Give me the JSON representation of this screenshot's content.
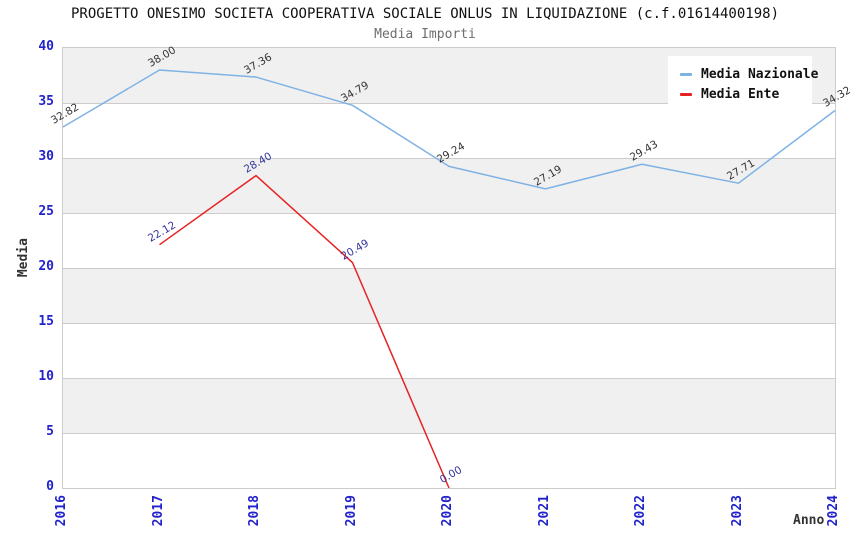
{
  "chart_data": {
    "type": "line",
    "title": "PROGETTO ONESIMO SOCIETA COOPERATIVA SOCIALE ONLUS IN LIQUIDAZIONE (c.f.01614400198)",
    "subtitle": "Media Importi",
    "xlabel": "Anno",
    "ylabel": "Media",
    "ylim": [
      0,
      40
    ],
    "yticks": [
      0,
      5,
      10,
      15,
      20,
      25,
      30,
      35,
      40
    ],
    "x": [
      2016,
      2017,
      2018,
      2019,
      2020,
      2021,
      2022,
      2023,
      2024
    ],
    "grid": "horizontal-bands-alternating",
    "legend_position": "top-right",
    "series": [
      {
        "name": "Media Nazionale",
        "color": "#7fb2e4",
        "label_color": "#333333",
        "x": [
          2016,
          2017,
          2018,
          2019,
          2020,
          2021,
          2022,
          2023,
          2024
        ],
        "values": [
          32.82,
          38.0,
          37.36,
          34.79,
          29.24,
          27.19,
          29.43,
          27.71,
          34.32
        ]
      },
      {
        "name": "Media Ente",
        "color": "#e62222",
        "label_color": "#333399",
        "x": [
          2017,
          2018,
          2019,
          2020
        ],
        "values": [
          22.12,
          28.4,
          20.49,
          0.0
        ]
      }
    ],
    "colors": {
      "tick_label": "#2222cc",
      "band_fill": "#f0f0f0",
      "grid_line": "#cccccc",
      "title": "#111111",
      "subtitle": "#6e6e6e",
      "axis_label": "#333333"
    }
  }
}
